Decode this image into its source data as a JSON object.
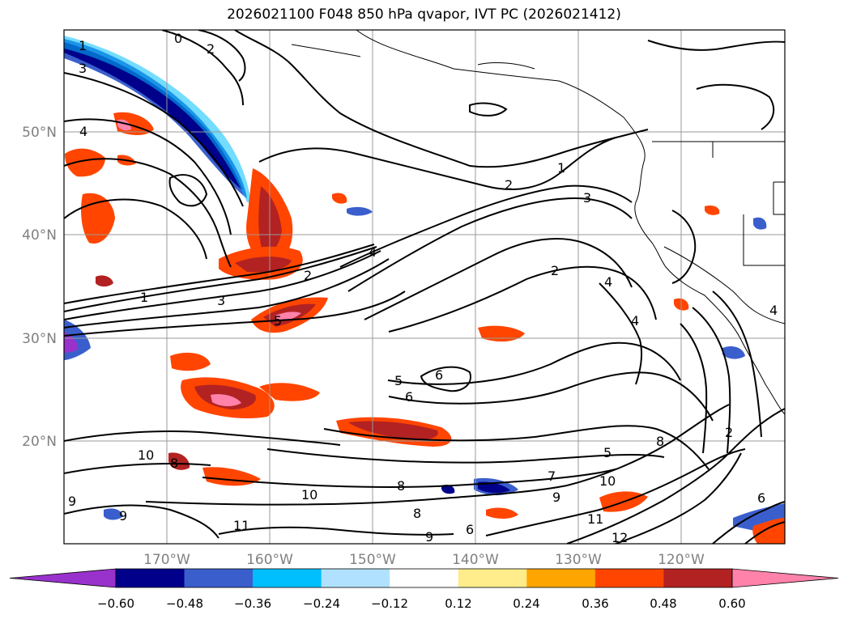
{
  "title": "2026021100 F048 850 hPa qvapor, IVT PC (2026021412)",
  "latitude_labels": [
    "50°N",
    "40°N",
    "30°N",
    "20°N"
  ],
  "longitude_labels": [
    "170°W",
    "160°W",
    "150°W",
    "140°W",
    "130°W",
    "120°W"
  ],
  "colorbar": {
    "ticks": [
      "−0.60",
      "−0.48",
      "−0.36",
      "−0.24",
      "−0.12",
      "0.12",
      "0.24",
      "0.36",
      "0.48",
      "0.60"
    ],
    "colors": [
      "#9932cc",
      "#00008b",
      "#3a5fcd",
      "#00bfff",
      "#b0e2ff",
      "#ffffff",
      "#ffec8b",
      "#ffa500",
      "#ff4500",
      "#b22222",
      "#ff82ab"
    ]
  },
  "contour_labels": [
    "1",
    "3",
    "0",
    "4",
    "2",
    "1",
    "3",
    "2",
    "4",
    "1",
    "2",
    "3",
    "5",
    "6",
    "5",
    "6",
    "2",
    "4",
    "4",
    "4",
    "2",
    "5",
    "8",
    "10",
    "8",
    "9",
    "10",
    "7",
    "9",
    "8",
    "11",
    "12",
    "6",
    "11",
    "9",
    "10",
    "9",
    "6",
    "8"
  ],
  "fill_colors": {
    "positive_low": "#ffa500",
    "positive_mid": "#ff4500",
    "positive_high": "#b22222",
    "positive_max": "#ff82ab",
    "negative_low": "#00bfff",
    "negative_mid": "#3a5fcd",
    "negative_high": "#00008b"
  }
}
